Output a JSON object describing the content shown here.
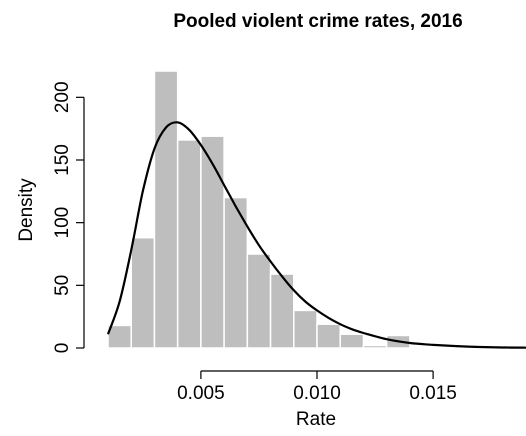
{
  "chart_data": {
    "type": "bar",
    "subtype": "histogram-with-density-curve",
    "title": "Pooled violent crime rates, 2016",
    "xlabel": "Rate",
    "ylabel": "Density",
    "bin_width": 0.001,
    "bins": [
      {
        "x0": 0.001,
        "x1": 0.002,
        "density": 18
      },
      {
        "x0": 0.002,
        "x1": 0.003,
        "density": 88
      },
      {
        "x0": 0.003,
        "x1": 0.004,
        "density": 221
      },
      {
        "x0": 0.004,
        "x1": 0.005,
        "density": 166
      },
      {
        "x0": 0.005,
        "x1": 0.006,
        "density": 169
      },
      {
        "x0": 0.006,
        "x1": 0.007,
        "density": 120
      },
      {
        "x0": 0.007,
        "x1": 0.008,
        "density": 75
      },
      {
        "x0": 0.008,
        "x1": 0.009,
        "density": 59
      },
      {
        "x0": 0.009,
        "x1": 0.01,
        "density": 30
      },
      {
        "x0": 0.01,
        "x1": 0.011,
        "density": 19
      },
      {
        "x0": 0.011,
        "x1": 0.012,
        "density": 11
      },
      {
        "x0": 0.012,
        "x1": 0.013,
        "density": 2
      },
      {
        "x0": 0.013,
        "x1": 0.014,
        "density": 10
      },
      {
        "x0": 0.014,
        "x1": 0.015,
        "density": 0
      },
      {
        "x0": 0.015,
        "x1": 0.016,
        "density": 0
      },
      {
        "x0": 0.016,
        "x1": 0.017,
        "density": 0
      },
      {
        "x0": 0.017,
        "x1": 0.018,
        "density": 0
      },
      {
        "x0": 0.018,
        "x1": 0.019,
        "density": 2
      }
    ],
    "curve": {
      "x": [
        0.001,
        0.0015,
        0.002,
        0.0025,
        0.003,
        0.0035,
        0.004,
        0.0045,
        0.005,
        0.0055,
        0.006,
        0.0065,
        0.007,
        0.0075,
        0.008,
        0.0085,
        0.009,
        0.0095,
        0.01,
        0.0105,
        0.011,
        0.0115,
        0.012,
        0.013,
        0.014,
        0.015,
        0.016,
        0.017,
        0.018,
        0.019
      ],
      "y": [
        11,
        37,
        78,
        125,
        159,
        176,
        180,
        174,
        162,
        147,
        130,
        113,
        97,
        82,
        69,
        57,
        46,
        37,
        30,
        24,
        19,
        15,
        12,
        7,
        4,
        2.5,
        1.5,
        0.8,
        0.4,
        0.2
      ]
    },
    "xlim": [
      0.001,
      0.019
    ],
    "ylim": [
      0,
      221
    ],
    "x_ticks": [
      0.005,
      0.01,
      0.015
    ],
    "x_tick_labels": [
      "0.005",
      "0.010",
      "0.015"
    ],
    "y_ticks": [
      0,
      50,
      100,
      150,
      200
    ],
    "y_tick_labels": [
      "0",
      "50",
      "100",
      "150",
      "200"
    ],
    "colors": {
      "bar_fill": "#bebebe",
      "bar_border": "#ffffff",
      "curve": "#000000"
    },
    "grid": false
  }
}
